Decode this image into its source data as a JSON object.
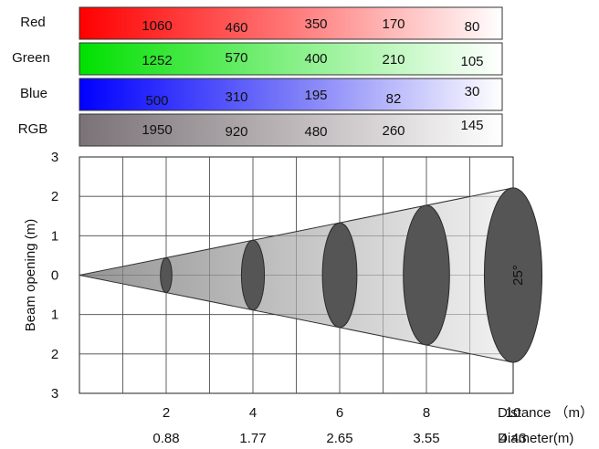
{
  "chart_data": [
    {
      "type": "table",
      "x_unit": "Distance (m)",
      "rows": [
        {
          "name": "Red",
          "values": [
            1060,
            460,
            350,
            170,
            80
          ],
          "color": "#ff0000"
        },
        {
          "name": "Green",
          "values": [
            1252,
            570,
            400,
            210,
            105
          ],
          "color": "#00e000"
        },
        {
          "name": "Blue",
          "values": [
            500,
            310,
            195,
            82,
            30
          ],
          "color": "#0000ff"
        },
        {
          "name": "RGB",
          "values": [
            1950,
            920,
            480,
            260,
            145
          ],
          "color": "#7a7276"
        }
      ]
    },
    {
      "type": "beam_diagram",
      "ylabel": "Beam opening (m)",
      "yticks": [
        "3",
        "2",
        "1",
        "0",
        "1",
        "2",
        "3"
      ],
      "ylim": [
        -3,
        3
      ],
      "xlim": [
        0,
        10
      ],
      "distance": [
        2,
        4,
        6,
        8,
        10
      ],
      "diameter": [
        0.88,
        1.77,
        2.65,
        3.55,
        4.43
      ],
      "distance_label": "Distance （m）",
      "diameter_label": "Diameter(m)",
      "angle_label": "25°",
      "grid": true
    }
  ]
}
